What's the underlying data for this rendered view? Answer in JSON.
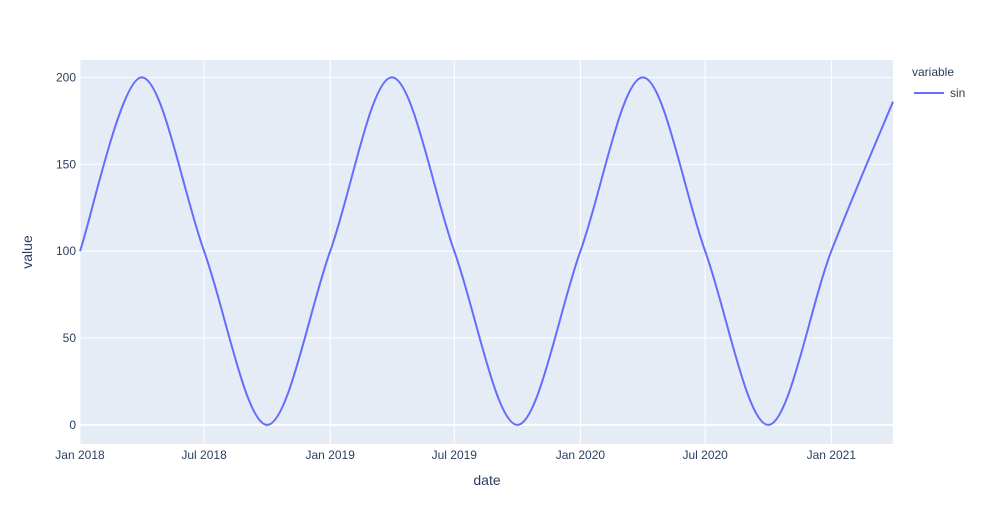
{
  "chart_data": {
    "type": "line",
    "xlabel": "date",
    "ylabel": "value",
    "xlim": [
      "2018-01-01",
      "2021-04-01"
    ],
    "ylim": [
      -11,
      210
    ],
    "x_ticks": [
      {
        "date": "2018-01-01",
        "label": "Jan 2018"
      },
      {
        "date": "2018-07-01",
        "label": "Jul 2018"
      },
      {
        "date": "2019-01-01",
        "label": "Jan 2019"
      },
      {
        "date": "2019-07-01",
        "label": "Jul 2019"
      },
      {
        "date": "2020-01-01",
        "label": "Jan 2020"
      },
      {
        "date": "2020-07-01",
        "label": "Jul 2020"
      },
      {
        "date": "2021-01-01",
        "label": "Jan 2021"
      }
    ],
    "y_ticks": [
      0,
      50,
      100,
      150,
      200
    ],
    "grid": true,
    "legend": {
      "title": "variable",
      "placement": "top-right"
    },
    "series": [
      {
        "name": "sin",
        "color": "#636efa",
        "points": [
          {
            "x": "2018-01-01",
            "y": 100
          },
          {
            "x": "2018-04-01",
            "y": 200
          },
          {
            "x": "2018-07-01",
            "y": 100
          },
          {
            "x": "2018-10-01",
            "y": 0
          },
          {
            "x": "2019-01-01",
            "y": 100
          },
          {
            "x": "2019-04-01",
            "y": 200
          },
          {
            "x": "2019-07-01",
            "y": 100
          },
          {
            "x": "2019-10-01",
            "y": 0
          },
          {
            "x": "2020-01-01",
            "y": 100
          },
          {
            "x": "2020-04-01",
            "y": 200
          },
          {
            "x": "2020-07-01",
            "y": 100
          },
          {
            "x": "2020-10-01",
            "y": 0
          },
          {
            "x": "2021-01-01",
            "y": 100
          },
          {
            "x": "2021-04-01",
            "y": 186
          }
        ]
      }
    ]
  }
}
